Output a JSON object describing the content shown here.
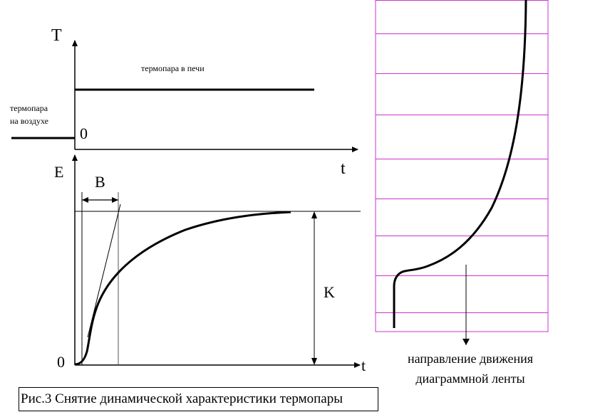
{
  "top_graph": {
    "y_axis_label": "T",
    "x_axis_label": "t",
    "zero_label": "0",
    "furnace_label": "термопара в печи",
    "air_label_line1": "термопара",
    "air_label_line2": "на воздухе"
  },
  "bottom_graph": {
    "y_axis_label": "E",
    "x_axis_label": "t",
    "zero_label": "0",
    "delay_label": "B",
    "gain_label": "K"
  },
  "chart_tape": {
    "direction_line1": "направление движения",
    "direction_line2": "диаграммной ленты",
    "grid_color": "#cc33cc",
    "line_count": 9
  },
  "caption": "Рис.3 Снятие динамической характеристики термопары"
}
